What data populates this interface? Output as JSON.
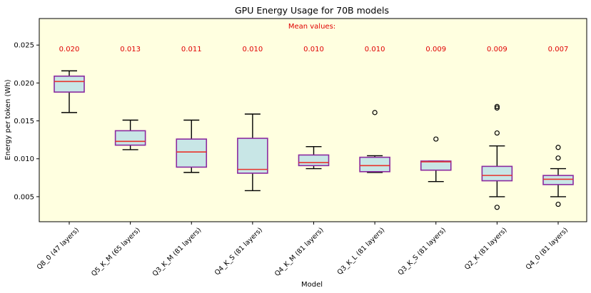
{
  "chart_data": {
    "type": "box",
    "title": "GPU Energy Usage for 70B models",
    "xlabel": "Model",
    "ylabel": "Energy per token (Wh)",
    "ylim": [
      0.0017,
      0.0285
    ],
    "yticks": [
      0.005,
      0.01,
      0.015,
      0.02,
      0.025
    ],
    "ytick_labels": [
      "0.005",
      "0.010",
      "0.015",
      "0.020",
      "0.025"
    ],
    "annotation": "Mean values:",
    "colors": {
      "background": "#ffffe0",
      "box_fill": "#c8e6e6",
      "box_edge": "#8b2aa0",
      "median": "#e8332a",
      "mean_text": "#e00000",
      "whisker": "#000000"
    },
    "boxes": [
      {
        "category": "Q8_0 (47 layers)",
        "mean_label": "0.020",
        "whislo": 0.0161,
        "q1": 0.0188,
        "med": 0.0202,
        "q3": 0.0209,
        "whishi": 0.0216,
        "fliers": []
      },
      {
        "category": "Q5_K_M (65 layers)",
        "mean_label": "0.013",
        "whislo": 0.0112,
        "q1": 0.0118,
        "med": 0.0123,
        "q3": 0.0137,
        "whishi": 0.0151,
        "fliers": []
      },
      {
        "category": "Q3_K_M (81 layers)",
        "mean_label": "0.011",
        "whislo": 0.0082,
        "q1": 0.0089,
        "med": 0.0109,
        "q3": 0.0126,
        "whishi": 0.0151,
        "fliers": []
      },
      {
        "category": "Q4_K_S (81 layers)",
        "mean_label": "0.010",
        "whislo": 0.0058,
        "q1": 0.0081,
        "med": 0.0086,
        "q3": 0.0127,
        "whishi": 0.0159,
        "fliers": []
      },
      {
        "category": "Q4_K_M (81 layers)",
        "mean_label": "0.010",
        "whislo": 0.0087,
        "q1": 0.0091,
        "med": 0.0095,
        "q3": 0.0105,
        "whishi": 0.0116,
        "fliers": []
      },
      {
        "category": "Q3_K_L (81 layers)",
        "mean_label": "0.010",
        "whislo": 0.0082,
        "q1": 0.0083,
        "med": 0.0091,
        "q3": 0.0102,
        "whishi": 0.0104,
        "fliers": [
          0.0161
        ]
      },
      {
        "category": "Q3_K_S (81 layers)",
        "mean_label": "0.009",
        "whislo": 0.007,
        "q1": 0.0085,
        "med": 0.0096,
        "q3": 0.0097,
        "whishi": 0.0097,
        "fliers": [
          0.0126
        ]
      },
      {
        "category": "Q2_K (81 layers)",
        "mean_label": "0.009",
        "whislo": 0.005,
        "q1": 0.0071,
        "med": 0.0078,
        "q3": 0.009,
        "whishi": 0.0117,
        "fliers": [
          0.0036,
          0.0134,
          0.0167,
          0.0169
        ]
      },
      {
        "category": "Q4_0 (81 layers)",
        "mean_label": "0.007",
        "whislo": 0.005,
        "q1": 0.0066,
        "med": 0.0073,
        "q3": 0.0078,
        "whishi": 0.0087,
        "fliers": [
          0.004,
          0.0101,
          0.0115
        ]
      }
    ]
  }
}
